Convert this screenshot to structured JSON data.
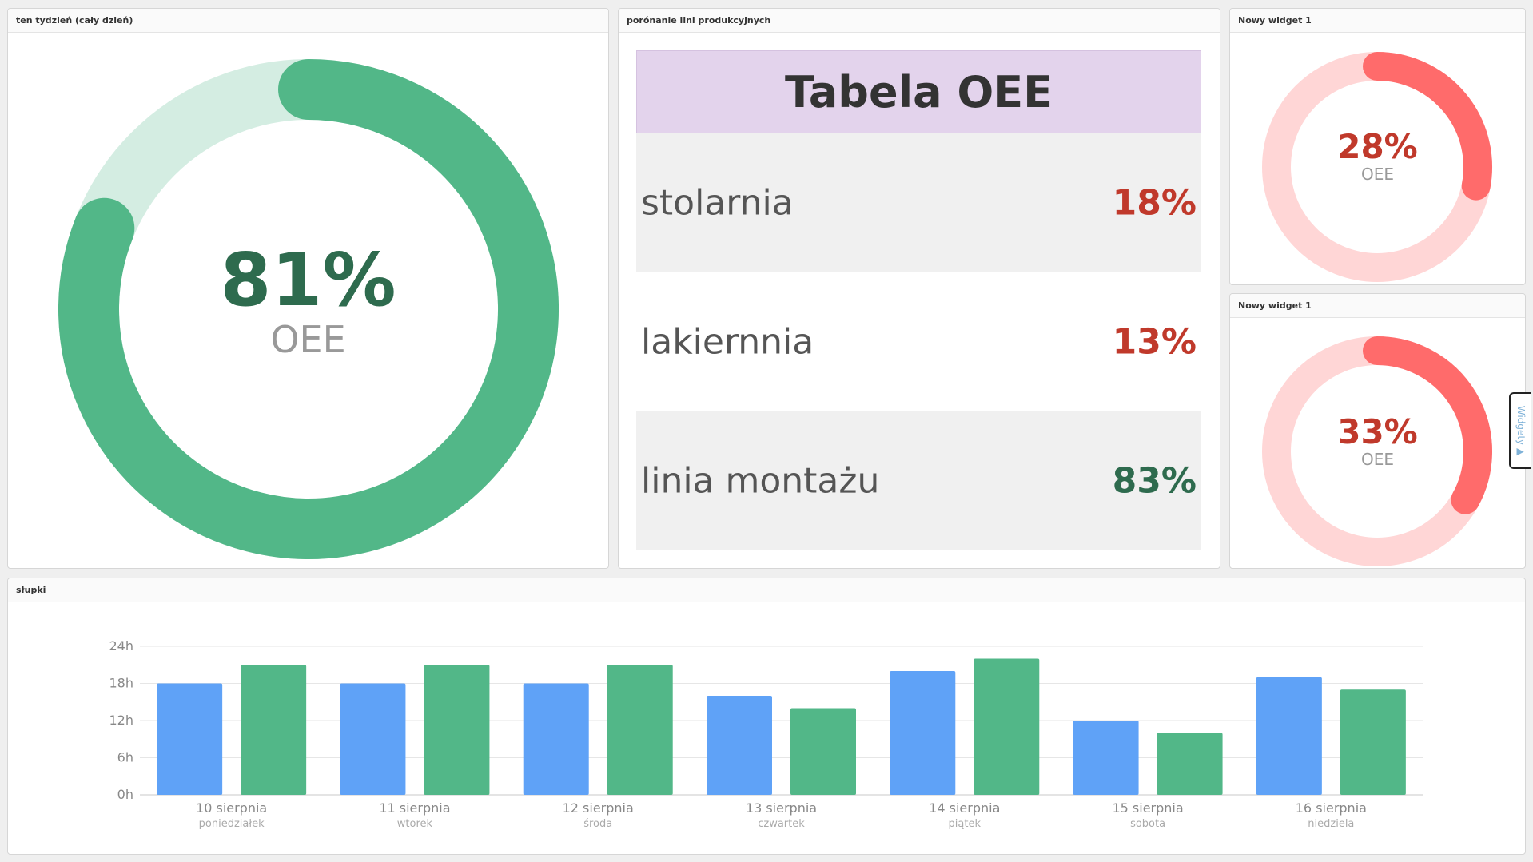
{
  "colors": {
    "green": "#52b788",
    "green_light": "#d4ede2",
    "green_text": "#2e6b4e",
    "red": "#ff6b6b",
    "red_light": "#ffd6d6",
    "red_text": "#c0392b",
    "blue": "#5fa2f7"
  },
  "widget_week": {
    "title": "ten tydzień (cały dzień)",
    "value": "81%",
    "label": "OEE",
    "fraction": 0.81
  },
  "widget_table": {
    "title": "porónanie lini produkcyjnych",
    "table_title": "Tabela OEE",
    "rows": [
      {
        "name": "stolarnia",
        "value": "18%"
      },
      {
        "name": "lakiernnia",
        "value": "13%"
      },
      {
        "name": "linia montażu",
        "value": "83%"
      }
    ]
  },
  "widget_small_1": {
    "title": "Nowy widget 1",
    "value": "28%",
    "label": "OEE",
    "fraction": 0.28
  },
  "widget_small_2": {
    "title": "Nowy widget 1",
    "value": "33%",
    "label": "OEE",
    "fraction": 0.33
  },
  "side_tab": {
    "label": "Widgety ▲"
  },
  "bars_widget": {
    "title": "słupki"
  },
  "chart_data": {
    "type": "bar",
    "categories": [
      "10 sierpnia",
      "11 sierpnia",
      "12 sierpnia",
      "13 sierpnia",
      "14 sierpnia",
      "15 sierpnia",
      "16 sierpnia"
    ],
    "subcategories": [
      "poniedziałek",
      "wtorek",
      "środa",
      "czwartek",
      "piątek",
      "sobota",
      "niedziela"
    ],
    "series": [
      {
        "color": "#5fa2f7",
        "values": [
          18,
          18,
          18,
          16,
          20,
          12,
          19
        ]
      },
      {
        "color": "#52b788",
        "values": [
          21,
          21,
          21,
          14,
          22,
          10,
          17
        ]
      }
    ],
    "yticks": [
      "0h",
      "6h",
      "12h",
      "18h",
      "24h"
    ],
    "ylim": [
      0,
      24
    ],
    "grid": true
  }
}
